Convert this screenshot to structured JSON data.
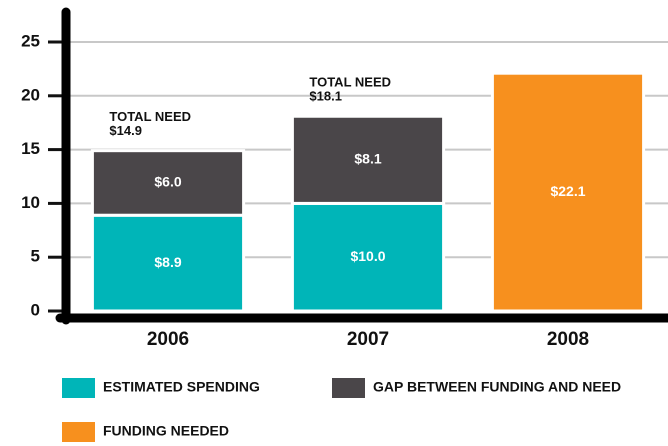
{
  "chart_data": {
    "type": "stacked_bar",
    "categories": [
      "2006",
      "2007",
      "2008"
    ],
    "series": [
      {
        "name": "ESTIMATED SPENDING",
        "color": "#00b5b8",
        "values": [
          8.9,
          10.0,
          null
        ],
        "value_labels": [
          "$8.9",
          "$10.0",
          null
        ]
      },
      {
        "name": "GAP BETWEEN FUNDING AND NEED",
        "color": "#4a4649",
        "values": [
          6.0,
          8.1,
          null
        ],
        "value_labels": [
          "$6.0",
          "$8.1",
          null
        ]
      },
      {
        "name": "FUNDING NEEDED",
        "color": "#f7901e",
        "values": [
          null,
          null,
          22.1
        ],
        "value_labels": [
          null,
          null,
          "$22.1"
        ]
      }
    ],
    "annotations": [
      {
        "category": 0,
        "text": "TOTAL NEED",
        "value": 14.9,
        "label": "$14.9"
      },
      {
        "category": 1,
        "text": "TOTAL NEED",
        "value": 18.1,
        "label": "$18.1"
      }
    ],
    "ylim": [
      0,
      25
    ],
    "yticks": [
      0,
      5,
      10,
      15,
      20,
      25
    ],
    "grid": true
  }
}
